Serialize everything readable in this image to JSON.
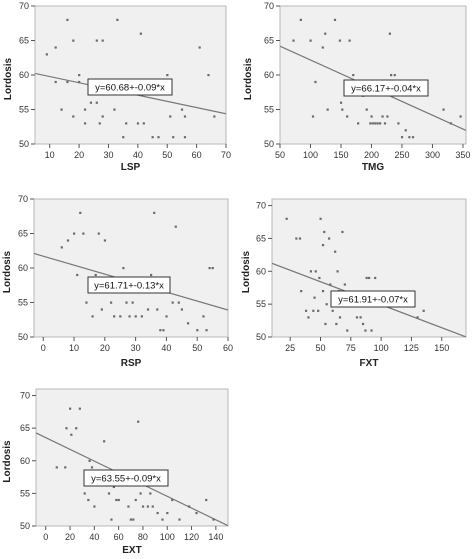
{
  "chart_data": [
    {
      "type": "scatter",
      "title": "",
      "xlabel": "LSP",
      "ylabel": "Lordosis",
      "xlim": [
        5,
        70
      ],
      "ylim": [
        50,
        70
      ],
      "xticks": [
        10,
        20,
        30,
        40,
        50,
        60,
        70
      ],
      "yticks": [
        50,
        55,
        60,
        65,
        70
      ],
      "equation": "y=60.68+-0.09*x",
      "fit": {
        "intercept": 60.68,
        "slope": -0.09
      },
      "grid": false,
      "points": [
        [
          9,
          63
        ],
        [
          12,
          64
        ],
        [
          12,
          59
        ],
        [
          14,
          55
        ],
        [
          16,
          68
        ],
        [
          16,
          59
        ],
        [
          18,
          54
        ],
        [
          18,
          65
        ],
        [
          20,
          60
        ],
        [
          20,
          59
        ],
        [
          22,
          53
        ],
        [
          22,
          55
        ],
        [
          24,
          56
        ],
        [
          26,
          65
        ],
        [
          26,
          56
        ],
        [
          27,
          53
        ],
        [
          28,
          65
        ],
        [
          28,
          54
        ],
        [
          32,
          55
        ],
        [
          33,
          68
        ],
        [
          35,
          51
        ],
        [
          36,
          53
        ],
        [
          40,
          53
        ],
        [
          41,
          66
        ],
        [
          42,
          53
        ],
        [
          45,
          51
        ],
        [
          47,
          51
        ],
        [
          50,
          60
        ],
        [
          51,
          54
        ],
        [
          52,
          51
        ],
        [
          55,
          55
        ],
        [
          56,
          54
        ],
        [
          56,
          51
        ],
        [
          61,
          64
        ],
        [
          64,
          60
        ],
        [
          66,
          54
        ]
      ]
    },
    {
      "type": "scatter",
      "title": "",
      "xlabel": "TMG",
      "ylabel": "Lordosis",
      "xlim": [
        50,
        355
      ],
      "ylim": [
        50,
        70
      ],
      "xticks": [
        50,
        100,
        150,
        200,
        250,
        300,
        350
      ],
      "yticks": [
        50,
        55,
        60,
        65,
        70
      ],
      "equation": "y=66.17+-0.04*x",
      "fit": {
        "intercept": 66.17,
        "slope": -0.04
      },
      "grid": false,
      "points": [
        [
          72,
          65
        ],
        [
          84,
          68
        ],
        [
          100,
          65
        ],
        [
          104,
          54
        ],
        [
          108,
          59
        ],
        [
          120,
          64
        ],
        [
          124,
          66
        ],
        [
          128,
          55
        ],
        [
          140,
          68
        ],
        [
          148,
          65
        ],
        [
          150,
          56
        ],
        [
          152,
          55
        ],
        [
          160,
          54
        ],
        [
          164,
          65
        ],
        [
          170,
          60
        ],
        [
          178,
          53
        ],
        [
          180,
          58
        ],
        [
          186,
          57
        ],
        [
          192,
          55
        ],
        [
          198,
          53
        ],
        [
          200,
          54
        ],
        [
          202,
          53
        ],
        [
          206,
          53
        ],
        [
          210,
          53
        ],
        [
          214,
          53
        ],
        [
          218,
          54
        ],
        [
          222,
          53
        ],
        [
          226,
          54
        ],
        [
          230,
          66
        ],
        [
          232,
          60
        ],
        [
          238,
          60
        ],
        [
          244,
          53
        ],
        [
          250,
          51
        ],
        [
          256,
          52
        ],
        [
          262,
          51
        ],
        [
          268,
          51
        ],
        [
          318,
          55
        ],
        [
          330,
          53
        ],
        [
          346,
          54
        ]
      ]
    },
    {
      "type": "scatter",
      "title": "",
      "xlabel": "RSP",
      "ylabel": "Lordosis",
      "xlim": [
        -3,
        60
      ],
      "ylim": [
        50,
        70
      ],
      "xticks": [
        0,
        10,
        20,
        30,
        40,
        50,
        60
      ],
      "yticks": [
        50,
        55,
        60,
        65,
        70
      ],
      "equation": "y=61.71+-0.13*x",
      "fit": {
        "intercept": 61.71,
        "slope": -0.13
      },
      "grid": false,
      "points": [
        [
          6,
          63
        ],
        [
          8,
          64
        ],
        [
          10,
          65
        ],
        [
          11,
          59
        ],
        [
          12,
          68
        ],
        [
          13,
          65
        ],
        [
          14,
          55
        ],
        [
          16,
          53
        ],
        [
          17,
          59
        ],
        [
          18,
          65
        ],
        [
          19,
          54
        ],
        [
          20,
          64
        ],
        [
          22,
          55
        ],
        [
          23,
          53
        ],
        [
          25,
          53
        ],
        [
          26,
          60
        ],
        [
          27,
          55
        ],
        [
          28,
          53
        ],
        [
          29,
          55
        ],
        [
          30,
          53
        ],
        [
          32,
          53
        ],
        [
          34,
          54
        ],
        [
          35,
          59
        ],
        [
          36,
          68
        ],
        [
          37,
          54
        ],
        [
          38,
          51
        ],
        [
          39,
          51
        ],
        [
          40,
          53
        ],
        [
          42,
          55
        ],
        [
          43,
          66
        ],
        [
          44,
          55
        ],
        [
          45,
          54
        ],
        [
          47,
          52
        ],
        [
          50,
          51
        ],
        [
          52,
          53
        ],
        [
          53,
          51
        ],
        [
          54,
          60
        ],
        [
          55,
          60
        ]
      ]
    },
    {
      "type": "scatter",
      "title": "",
      "xlabel": "FXT",
      "ylabel": "Lordosis",
      "xlim": [
        10,
        170
      ],
      "ylim": [
        50,
        71
      ],
      "xticks": [
        25,
        50,
        75,
        100,
        125,
        150
      ],
      "yticks": [
        50,
        55,
        60,
        65,
        70
      ],
      "equation": "y=61.91+-0.07*x",
      "fit": {
        "intercept": 61.91,
        "slope": -0.07
      },
      "grid": false,
      "points": [
        [
          22,
          68
        ],
        [
          30,
          65
        ],
        [
          33,
          65
        ],
        [
          34,
          57
        ],
        [
          38,
          54
        ],
        [
          40,
          53
        ],
        [
          42,
          60
        ],
        [
          44,
          54
        ],
        [
          45,
          56
        ],
        [
          46,
          60
        ],
        [
          48,
          54
        ],
        [
          49,
          59
        ],
        [
          50,
          68
        ],
        [
          52,
          57
        ],
        [
          52,
          64
        ],
        [
          53,
          66
        ],
        [
          54,
          52
        ],
        [
          55,
          55
        ],
        [
          57,
          65
        ],
        [
          58,
          58
        ],
        [
          60,
          54
        ],
        [
          62,
          63
        ],
        [
          63,
          52
        ],
        [
          64,
          60
        ],
        [
          65,
          57
        ],
        [
          66,
          53
        ],
        [
          68,
          66
        ],
        [
          70,
          58
        ],
        [
          72,
          51
        ],
        [
          75,
          55
        ],
        [
          78,
          56
        ],
        [
          80,
          53
        ],
        [
          83,
          53
        ],
        [
          85,
          52
        ],
        [
          87,
          51
        ],
        [
          88,
          59
        ],
        [
          90,
          59
        ],
        [
          92,
          51
        ],
        [
          95,
          59
        ],
        [
          100,
          55
        ],
        [
          105,
          55
        ],
        [
          130,
          53
        ],
        [
          135,
          54
        ]
      ]
    },
    {
      "type": "scatter",
      "title": "",
      "xlabel": "EXT",
      "ylabel": "Lordosis",
      "xlim": [
        -8,
        150
      ],
      "ylim": [
        50,
        71
      ],
      "xticks": [
        0,
        20,
        40,
        60,
        80,
        100,
        120,
        140
      ],
      "yticks": [
        50,
        55,
        60,
        65,
        70
      ],
      "equation": "y=63.55+-0.09*x",
      "fit": {
        "intercept": 63.55,
        "slope": -0.09
      },
      "grid": false,
      "points": [
        [
          9,
          59
        ],
        [
          16,
          59
        ],
        [
          17,
          65
        ],
        [
          20,
          68
        ],
        [
          21,
          64
        ],
        [
          25,
          65
        ],
        [
          28,
          68
        ],
        [
          32,
          55
        ],
        [
          35,
          54
        ],
        [
          36,
          60
        ],
        [
          38,
          59
        ],
        [
          40,
          53
        ],
        [
          44,
          58
        ],
        [
          48,
          63
        ],
        [
          52,
          55
        ],
        [
          54,
          51
        ],
        [
          56,
          56
        ],
        [
          58,
          54
        ],
        [
          60,
          54
        ],
        [
          64,
          58
        ],
        [
          68,
          53
        ],
        [
          70,
          51
        ],
        [
          72,
          51
        ],
        [
          74,
          54
        ],
        [
          76,
          66
        ],
        [
          78,
          55
        ],
        [
          80,
          53
        ],
        [
          84,
          53
        ],
        [
          86,
          55
        ],
        [
          88,
          53
        ],
        [
          92,
          52
        ],
        [
          96,
          51
        ],
        [
          100,
          52
        ],
        [
          104,
          54
        ],
        [
          110,
          51
        ],
        [
          118,
          53
        ],
        [
          124,
          52
        ],
        [
          132,
          54
        ],
        [
          138,
          51
        ]
      ]
    }
  ]
}
